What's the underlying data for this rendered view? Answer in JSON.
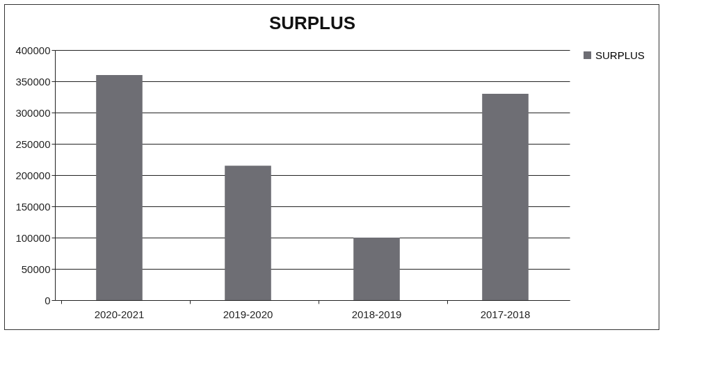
{
  "chart_data": {
    "type": "bar",
    "title": "SURPLUS",
    "categories": [
      "2020-2021",
      "2019-2020",
      "2018-2019",
      "2017-2018"
    ],
    "series": [
      {
        "name": "SURPLUS",
        "color": "#6e6e74",
        "values": [
          360000,
          215000,
          100000,
          330000
        ]
      }
    ],
    "ylim": [
      0,
      400000
    ],
    "yticks": [
      0,
      50000,
      100000,
      150000,
      200000,
      250000,
      300000,
      350000,
      400000
    ],
    "grid": "y",
    "legend": "right"
  }
}
